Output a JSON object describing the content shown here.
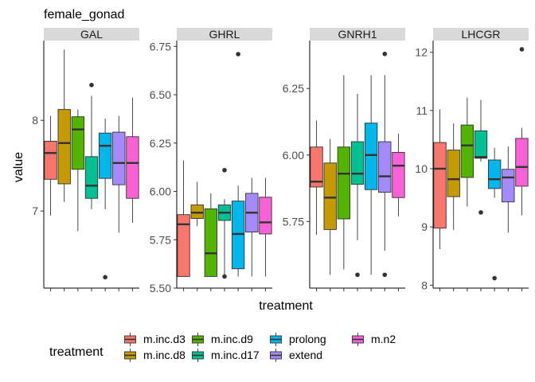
{
  "chart_data": {
    "type": "boxplot",
    "title": "female_gonad",
    "xlabel": "treatment",
    "ylabel": "value",
    "legend": {
      "title": "treatment",
      "position": "bottom",
      "items": [
        {
          "label": "m.inc.d3",
          "color": "#F8766D"
        },
        {
          "label": "m.inc.d8",
          "color": "#C49A00"
        },
        {
          "label": "m.inc.d9",
          "color": "#53B400"
        },
        {
          "label": "m.inc.d17",
          "color": "#00C094"
        },
        {
          "label": "prolong",
          "color": "#00B6EB"
        },
        {
          "label": "extend",
          "color": "#A58AFF"
        },
        {
          "label": "m.n2",
          "color": "#FB61D7"
        }
      ]
    },
    "categories": [
      "m.inc.d3",
      "m.inc.d8",
      "m.inc.d9",
      "m.inc.d17",
      "prolong",
      "extend",
      "m.n2"
    ],
    "panels": [
      {
        "name": "GAL",
        "ylim": [
          6.15,
          8.88
        ],
        "yticks": [
          7,
          8
        ],
        "boxes": [
          {
            "min": 6.95,
            "q1": 7.35,
            "median": 7.64,
            "q3": 7.77,
            "max": 8.05,
            "outliers": []
          },
          {
            "min": 7.1,
            "q1": 7.3,
            "median": 7.75,
            "q3": 8.12,
            "max": 8.78,
            "outliers": []
          },
          {
            "min": 6.78,
            "q1": 7.46,
            "median": 7.9,
            "q3": 8.04,
            "max": 8.12,
            "outliers": []
          },
          {
            "min": 7.02,
            "q1": 7.14,
            "median": 7.28,
            "q3": 7.6,
            "max": 8.27,
            "outliers": [
              8.39
            ]
          },
          {
            "min": 7.02,
            "q1": 7.36,
            "median": 7.72,
            "q3": 7.86,
            "max": 8.02,
            "outliers": [
              6.27
            ]
          },
          {
            "min": 6.76,
            "q1": 7.29,
            "median": 7.53,
            "q3": 7.87,
            "max": 8.05,
            "outliers": []
          },
          {
            "min": 6.87,
            "q1": 7.14,
            "median": 7.53,
            "q3": 7.82,
            "max": 8.25,
            "outliers": []
          }
        ]
      },
      {
        "name": "GHRL",
        "ylim": [
          5.5,
          6.78
        ],
        "yticks": [
          5.5,
          5.75,
          6.0,
          6.25,
          6.5,
          6.75
        ],
        "ytick_labels": [
          "5.50",
          "5.75",
          "6.00",
          "6.25",
          "6.50",
          "6.75"
        ],
        "boxes": [
          {
            "min": 5.56,
            "q1": 5.56,
            "median": 5.83,
            "q3": 5.88,
            "max": 6.16,
            "outliers": []
          },
          {
            "min": 5.82,
            "q1": 5.86,
            "median": 5.89,
            "q3": 5.93,
            "max": 6.05,
            "outliers": []
          },
          {
            "min": 5.56,
            "q1": 5.56,
            "median": 5.68,
            "q3": 5.91,
            "max": 5.99,
            "outliers": []
          },
          {
            "min": 5.56,
            "q1": 5.85,
            "median": 5.89,
            "q3": 5.93,
            "max": 5.96,
            "outliers": [
              6.11,
              5.56
            ]
          },
          {
            "min": 5.56,
            "q1": 5.6,
            "median": 5.78,
            "q3": 5.95,
            "max": 6.03,
            "outliers": [
              6.71
            ]
          },
          {
            "min": 5.56,
            "q1": 5.79,
            "median": 5.89,
            "q3": 5.99,
            "max": 6.07,
            "outliers": []
          },
          {
            "min": 5.56,
            "q1": 5.78,
            "median": 5.84,
            "q3": 5.97,
            "max": 6.07,
            "outliers": []
          }
        ]
      },
      {
        "name": "GNRH1",
        "ylim": [
          5.5,
          6.43
        ],
        "yticks": [
          5.75,
          6.0,
          6.25
        ],
        "ytick_labels": [
          "5.75",
          "6.00",
          "6.25"
        ],
        "boxes": [
          {
            "min": 5.7,
            "q1": 5.88,
            "median": 5.9,
            "q3": 6.03,
            "max": 6.13,
            "outliers": []
          },
          {
            "min": 5.55,
            "q1": 5.72,
            "median": 5.84,
            "q3": 5.97,
            "max": 6.06,
            "outliers": []
          },
          {
            "min": 5.57,
            "q1": 5.76,
            "median": 5.93,
            "q3": 6.03,
            "max": 6.3,
            "outliers": []
          },
          {
            "min": 5.68,
            "q1": 5.89,
            "median": 5.93,
            "q3": 6.05,
            "max": 6.23,
            "outliers": [
              5.55
            ]
          },
          {
            "min": 5.55,
            "q1": 5.87,
            "median": 6.0,
            "q3": 6.12,
            "max": 6.3,
            "outliers": []
          },
          {
            "min": 5.64,
            "q1": 5.86,
            "median": 5.92,
            "q3": 6.05,
            "max": 6.3,
            "outliers": [
              6.38,
              5.55
            ]
          },
          {
            "min": 5.77,
            "q1": 5.84,
            "median": 5.96,
            "q3": 6.01,
            "max": 6.08,
            "outliers": []
          }
        ]
      },
      {
        "name": "LHCGR",
        "ylim": [
          7.95,
          12.2
        ],
        "yticks": [
          8,
          9,
          10,
          11,
          12
        ],
        "boxes": [
          {
            "min": 8.62,
            "q1": 8.98,
            "median": 10.0,
            "q3": 10.45,
            "max": 11.02,
            "outliers": []
          },
          {
            "min": 8.95,
            "q1": 9.52,
            "median": 9.82,
            "q3": 10.32,
            "max": 10.78,
            "outliers": []
          },
          {
            "min": 9.35,
            "q1": 9.85,
            "median": 10.4,
            "q3": 10.75,
            "max": 11.22,
            "outliers": []
          },
          {
            "min": 10.12,
            "q1": 10.18,
            "median": 10.2,
            "q3": 10.65,
            "max": 11.18,
            "outliers": [
              9.25
            ]
          },
          {
            "min": 9.5,
            "q1": 9.66,
            "median": 9.82,
            "q3": 10.15,
            "max": 10.36,
            "outliers": [
              8.12
            ]
          },
          {
            "min": 8.9,
            "q1": 9.43,
            "median": 9.85,
            "q3": 9.99,
            "max": 10.38,
            "outliers": []
          },
          {
            "min": 9.2,
            "q1": 9.7,
            "median": 10.03,
            "q3": 10.52,
            "max": 10.7,
            "outliers": [
              12.05
            ]
          }
        ]
      }
    ]
  }
}
